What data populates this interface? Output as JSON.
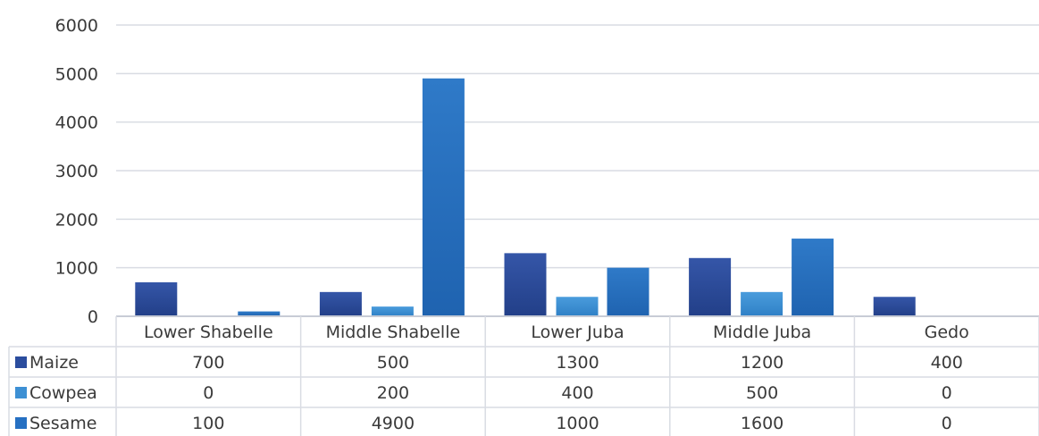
{
  "chart_data": {
    "type": "bar",
    "categories": [
      "Lower Shabelle",
      "Middle Shabelle",
      "Lower Juba",
      "Middle Juba",
      "Gedo"
    ],
    "series": [
      {
        "name": "Maize",
        "color": "#2b4d9e",
        "values": [
          700,
          500,
          1300,
          1200,
          400
        ]
      },
      {
        "name": "Cowpea",
        "color": "#3d90d4",
        "values": [
          0,
          200,
          400,
          500,
          0
        ]
      },
      {
        "name": "Sesame",
        "color": "#2670c2",
        "values": [
          100,
          4900,
          1000,
          1600,
          0
        ]
      }
    ],
    "y_ticks": [
      0,
      1000,
      2000,
      3000,
      4000,
      5000,
      6000
    ],
    "ylim": [
      0,
      6000
    ],
    "grid": true,
    "data_table": true,
    "table_cells": [
      [
        "700",
        "500",
        "1300",
        "1200",
        "400"
      ],
      [
        "0",
        "200",
        "400",
        "500",
        "0"
      ],
      [
        "100",
        "4900",
        "1000",
        "1600",
        "0"
      ]
    ]
  }
}
